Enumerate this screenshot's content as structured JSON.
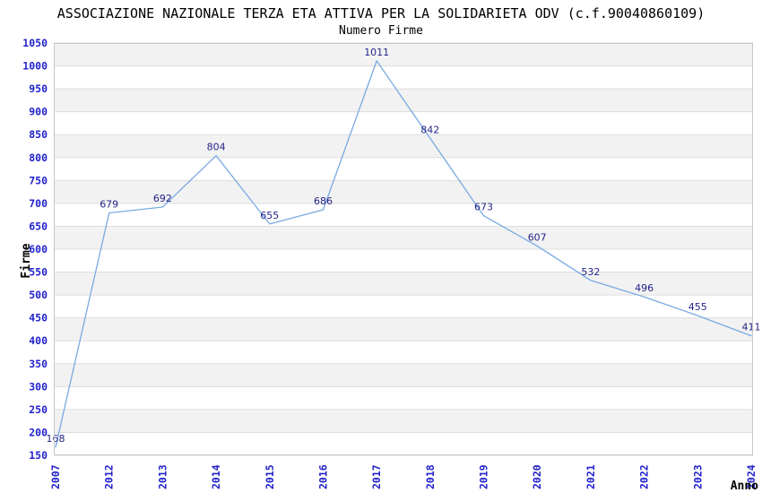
{
  "chart_data": {
    "type": "line",
    "title": "ASSOCIAZIONE NAZIONALE TERZA ETA ATTIVA PER LA SOLIDARIETA ODV (c.f.90040860109)",
    "subtitle": "Numero Firme",
    "xlabel": "Anno",
    "ylabel": "Firme",
    "categories": [
      "2007",
      "2012",
      "2013",
      "2014",
      "2015",
      "2016",
      "2017",
      "2018",
      "2019",
      "2020",
      "2021",
      "2022",
      "2023",
      "2024"
    ],
    "values": [
      168,
      679,
      692,
      804,
      655,
      686,
      1011,
      842,
      673,
      607,
      532,
      496,
      455,
      411
    ],
    "ylim": [
      150,
      1050
    ],
    "ytick_step": 50,
    "grid": "horizontal",
    "legend": "none",
    "band_fill_alternating": true,
    "colors": {
      "line": "#79aae2",
      "tick_label": "#2222cc",
      "data_label": "#252388",
      "band": "#f2f2f2",
      "gridline": "#dddddd",
      "border": "#c6c6c6",
      "title": "#000000",
      "background": "#ffffff"
    }
  }
}
